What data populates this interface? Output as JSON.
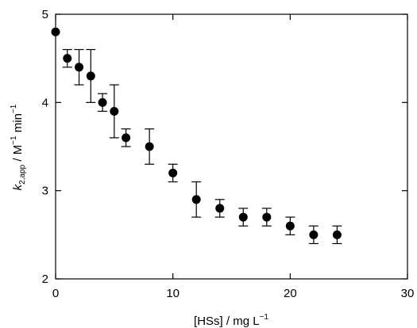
{
  "chart_data": {
    "type": "scatter",
    "title": "",
    "xlabel": "[HSs] / mg L",
    "xlabel_sup": "−1",
    "ylabel_k": "k",
    "ylabel_sub": "2,app",
    "ylabel_rest": " / M",
    "ylabel_sup1": "−1",
    "ylabel_min": " min",
    "ylabel_sup2": "−1",
    "xlim": [
      0,
      30
    ],
    "ylim": [
      2,
      5
    ],
    "x_ticks": [
      0,
      10,
      20,
      30
    ],
    "x_tick_labels": [
      "0",
      "10",
      "20",
      "30"
    ],
    "y_ticks": [
      2,
      3,
      4,
      5
    ],
    "y_tick_labels": [
      "2",
      "3",
      "4",
      "5"
    ],
    "grid": false,
    "marker_color": "#000000",
    "points": [
      {
        "x": 0,
        "y": 4.8,
        "err": 0
      },
      {
        "x": 1,
        "y": 4.5,
        "err": 0.1
      },
      {
        "x": 2,
        "y": 4.4,
        "err": 0.2
      },
      {
        "x": 3,
        "y": 4.3,
        "err": 0.3
      },
      {
        "x": 4,
        "y": 4.0,
        "err": 0.1
      },
      {
        "x": 5,
        "y": 3.9,
        "err": 0.3
      },
      {
        "x": 6,
        "y": 3.6,
        "err": 0.1
      },
      {
        "x": 8,
        "y": 3.5,
        "err": 0.2
      },
      {
        "x": 10,
        "y": 3.2,
        "err": 0.1
      },
      {
        "x": 12,
        "y": 2.9,
        "err": 0.2
      },
      {
        "x": 14,
        "y": 2.8,
        "err": 0.1
      },
      {
        "x": 16,
        "y": 2.7,
        "err": 0.1
      },
      {
        "x": 18,
        "y": 2.7,
        "err": 0.1
      },
      {
        "x": 20,
        "y": 2.6,
        "err": 0.1
      },
      {
        "x": 22,
        "y": 2.5,
        "err": 0.1
      },
      {
        "x": 24,
        "y": 2.5,
        "err": 0.1
      }
    ]
  }
}
